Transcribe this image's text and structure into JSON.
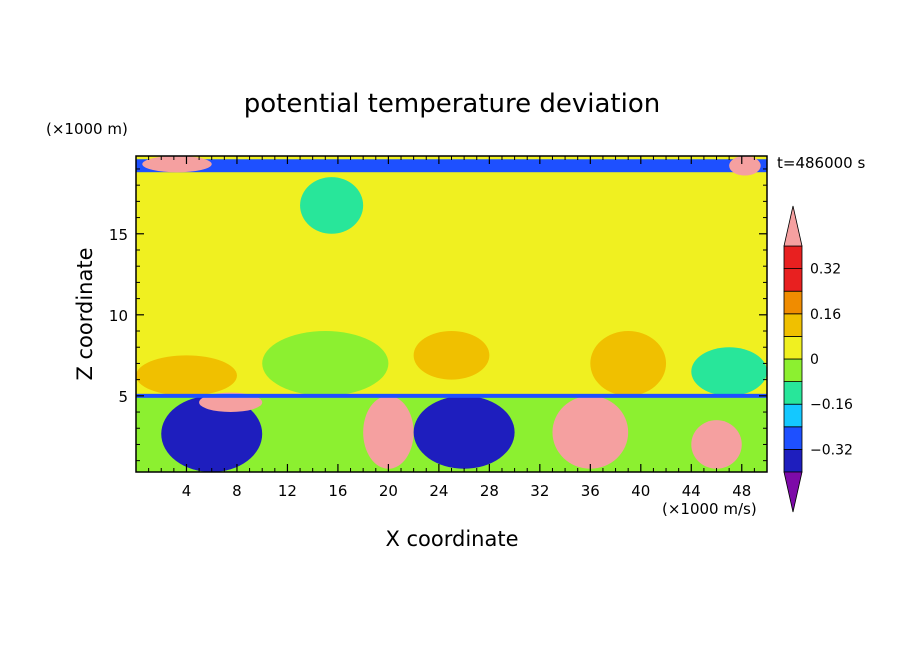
{
  "chart_data": {
    "type": "heatmap",
    "title": "potential temperature deviation",
    "xlabel": "X coordinate",
    "ylabel": "Z coordinate",
    "x_unit": "(×1000 m/s)",
    "y_unit": "(×1000 m)",
    "time_label": "t=486000 s",
    "xlim": [
      0,
      50
    ],
    "ylim": [
      0.3,
      19.8
    ],
    "x_ticks": [
      4,
      8,
      12,
      16,
      20,
      24,
      28,
      32,
      36,
      40,
      44,
      48
    ],
    "y_ticks": [
      5,
      10,
      15
    ],
    "colorbar": {
      "levels": [
        -0.4,
        -0.32,
        -0.24,
        -0.16,
        -0.08,
        0,
        0.08,
        0.16,
        0.24,
        0.32,
        0.4
      ],
      "tick_labels": [
        "0.32",
        "0.16",
        "0",
        "−0.16",
        "−0.32"
      ],
      "tick_values": [
        0.32,
        0.16,
        0,
        -0.16,
        -0.32
      ],
      "colors": [
        "#7d0aa8",
        "#1e1ebe",
        "#1e50ff",
        "#14c8ff",
        "#28e69a",
        "#8cf030",
        "#f0f020",
        "#f0c000",
        "#f08c00",
        "#e82020",
        "#f5a0a0"
      ],
      "extend": "both"
    },
    "field_description": "2D field; background mostly -0.08..0.08; strong negative band near top; mixed positive/negative cells below z=5",
    "top_band": {
      "z_min": 18.8,
      "z_max": 19.6,
      "value": -0.3
    },
    "boundary_z": 5.0,
    "regions": [
      {
        "x": [
          10,
          20
        ],
        "z": [
          5,
          9
        ],
        "value": -0.05
      },
      {
        "x": [
          22,
          28
        ],
        "z": [
          6,
          9
        ],
        "value": 0.12
      },
      {
        "x": [
          36,
          42
        ],
        "z": [
          5,
          9
        ],
        "value": 0.12
      },
      {
        "x": [
          0,
          8
        ],
        "z": [
          5,
          7.5
        ],
        "value": 0.14
      },
      {
        "x": [
          2,
          10
        ],
        "z": [
          0.3,
          5
        ],
        "value": -0.35
      },
      {
        "x": [
          18,
          22
        ],
        "z": [
          0.5,
          5
        ],
        "value": 0.35
      },
      {
        "x": [
          22,
          30
        ],
        "z": [
          0.5,
          5
        ],
        "value": -0.36
      },
      {
        "x": [
          33,
          39
        ],
        "z": [
          0.5,
          5
        ],
        "value": 0.42
      },
      {
        "x": [
          44,
          48
        ],
        "z": [
          0.5,
          3.5
        ],
        "value": 0.35
      },
      {
        "x": [
          44,
          50
        ],
        "z": [
          5,
          8
        ],
        "value": -0.12
      },
      {
        "x": [
          0.5,
          6
        ],
        "z": [
          18.8,
          19.8
        ],
        "value": 0.42
      },
      {
        "x": [
          47,
          49.5
        ],
        "z": [
          18.6,
          19.8
        ],
        "value": 0.42
      },
      {
        "x": [
          5,
          10
        ],
        "z": [
          4,
          5.2
        ],
        "value": 0.42
      },
      {
        "x": [
          13,
          18
        ],
        "z": [
          15,
          18.5
        ],
        "value": -0.12
      }
    ]
  }
}
